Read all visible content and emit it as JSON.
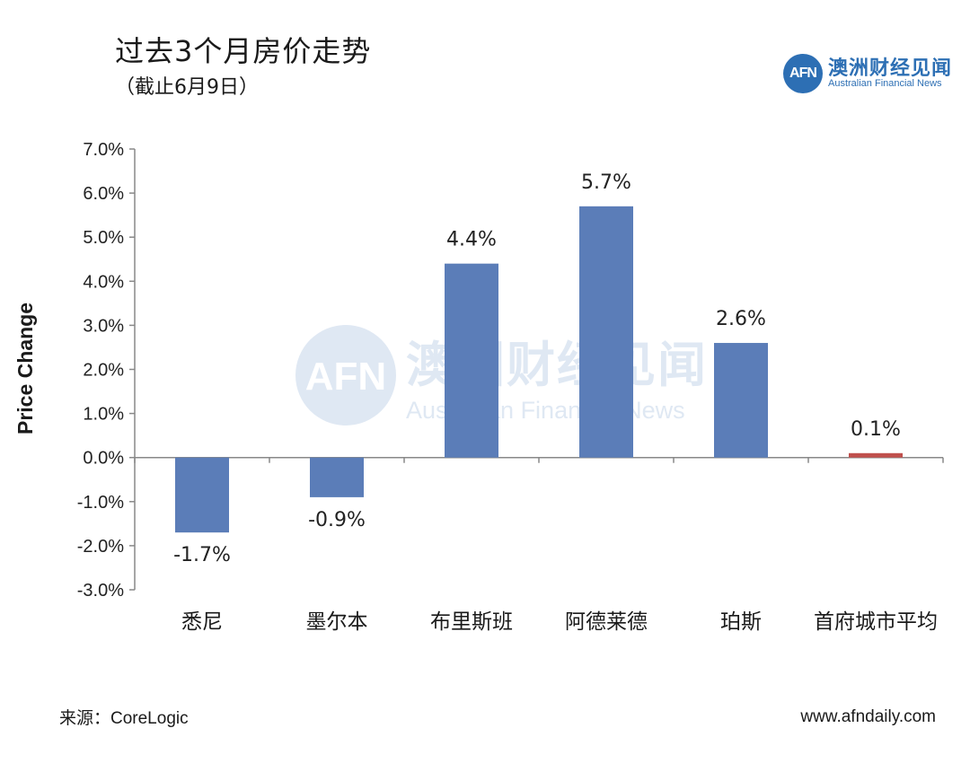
{
  "header": {
    "title": "过去3个月房价走势",
    "subtitle": "（截止6月9日）"
  },
  "logo": {
    "badge": "AFN",
    "name_cn": "澳洲财经见闻",
    "name_en": "Australian Financial News"
  },
  "watermark": {
    "badge": "AFN",
    "name_cn": "澳洲财经见闻",
    "name_en": "Australian Financial News"
  },
  "footer": {
    "source": "来源：CoreLogic",
    "website": "www.afndaily.com"
  },
  "colors": {
    "bar": "#5b7db8",
    "highlight_bar": "#c0504d",
    "axis": "#888888",
    "watermark": "#dfe8f3"
  },
  "chart_data": {
    "type": "bar",
    "ylabel": "Price Change",
    "categories": [
      "悉尼",
      "墨尔本",
      "布里斯班",
      "阿德莱德",
      "珀斯",
      "首府城市平均"
    ],
    "values": [
      -1.7,
      -0.9,
      4.4,
      5.7,
      2.6,
      0.1
    ],
    "data_labels": [
      "-1.7%",
      "-0.9%",
      "4.4%",
      "5.7%",
      "2.6%",
      "0.1%"
    ],
    "highlight_index": 5,
    "ylim": [
      -3.0,
      7.0
    ],
    "yticks": [
      7.0,
      6.0,
      5.0,
      4.0,
      3.0,
      2.0,
      1.0,
      0.0,
      -1.0,
      -2.0,
      -3.0
    ],
    "ytick_labels": [
      "7.0%",
      "6.0%",
      "5.0%",
      "4.0%",
      "3.0%",
      "2.0%",
      "1.0%",
      "0.0%",
      "-1.0%",
      "-2.0%",
      "-3.0%"
    ],
    "grid": false
  }
}
